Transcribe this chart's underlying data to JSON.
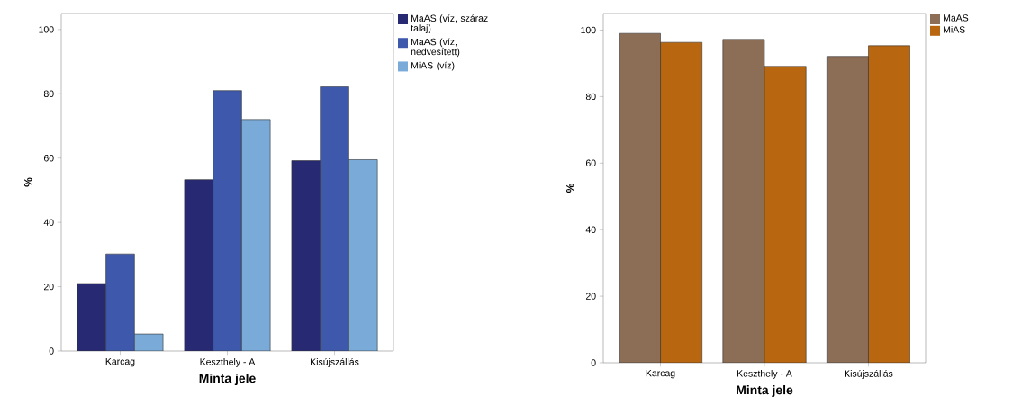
{
  "chart_data": [
    {
      "type": "bar",
      "xlabel": "Minta jele",
      "ylabel": "%",
      "categories": [
        "Karcag",
        "Keszthely - A",
        "Kisújszállás"
      ],
      "ylim": [
        0,
        105
      ],
      "yticks": [
        0,
        20,
        40,
        60,
        80,
        100
      ],
      "legend": "top right",
      "series": [
        {
          "name": "MaAS (víz, száraz talaj)",
          "color": "#272a72",
          "values": [
            21,
            53.3,
            59.2
          ]
        },
        {
          "name": "MaAS (víz, nedvesített)",
          "color": "#3e59ab",
          "values": [
            30.2,
            81,
            82.2
          ]
        },
        {
          "name": "MiAS (víz)",
          "color": "#7aaad7",
          "values": [
            5.3,
            72,
            59.5
          ]
        }
      ]
    },
    {
      "type": "bar",
      "xlabel": "Minta jele",
      "ylabel": "%",
      "categories": [
        "Karcag",
        "Keszthely - A",
        "Kisújszállás"
      ],
      "ylim": [
        0,
        105
      ],
      "yticks": [
        0,
        20,
        40,
        60,
        80,
        100
      ],
      "legend": "top right",
      "series": [
        {
          "name": "MaAS",
          "color": "#8c6d56",
          "values": [
            99,
            97.2,
            92.1
          ]
        },
        {
          "name": "MiAS",
          "color": "#b8660f",
          "values": [
            96.3,
            89.1,
            95.3
          ]
        }
      ]
    }
  ]
}
